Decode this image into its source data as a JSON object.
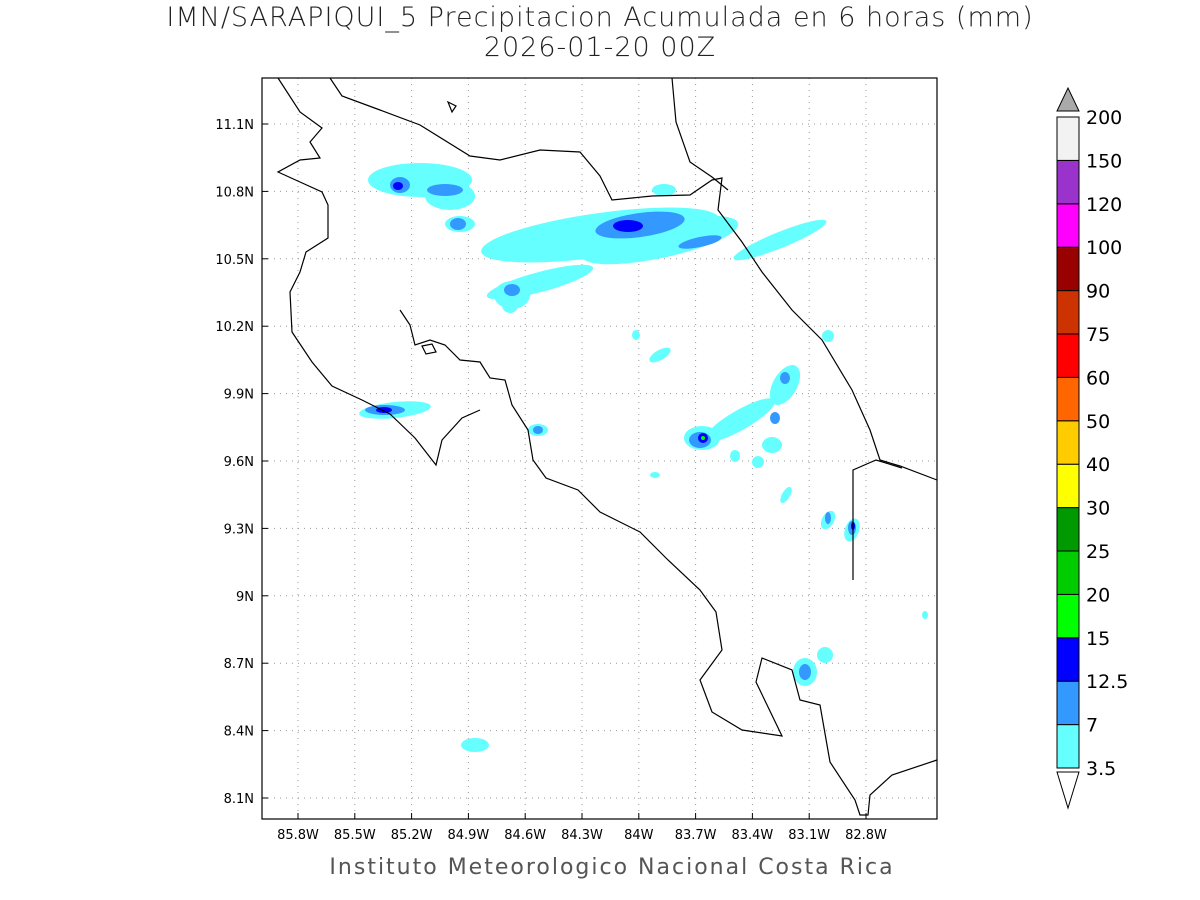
{
  "title": "IMN/SARAPIQUI_5 Precipitacion Acumulada en 6 horas (mm)",
  "subtitle": "2026-01-20 00Z",
  "footer": "Instituto Meteorologico Nacional Costa Rica",
  "map": {
    "lon_range": [
      -86.0,
      -82.43
    ],
    "lat_range": [
      8.0,
      11.3
    ],
    "lon_ticks": [
      {
        "v": -85.8,
        "label": "85.8W"
      },
      {
        "v": -85.5,
        "label": "85.5W"
      },
      {
        "v": -85.2,
        "label": "85.2W"
      },
      {
        "v": -84.9,
        "label": "84.9W"
      },
      {
        "v": -84.6,
        "label": "84.6W"
      },
      {
        "v": -84.3,
        "label": "84.3W"
      },
      {
        "v": -84.0,
        "label": "84W"
      },
      {
        "v": -83.7,
        "label": "83.7W"
      },
      {
        "v": -83.4,
        "label": "83.4W"
      },
      {
        "v": -83.1,
        "label": "83.1W"
      },
      {
        "v": -82.8,
        "label": "82.8W"
      }
    ],
    "lat_ticks": [
      {
        "v": 11.1,
        "label": "11.1N"
      },
      {
        "v": 10.8,
        "label": "10.8N"
      },
      {
        "v": 10.5,
        "label": "10.5N"
      },
      {
        "v": 10.2,
        "label": "10.2N"
      },
      {
        "v": 9.9,
        "label": "9.9N"
      },
      {
        "v": 9.6,
        "label": "9.6N"
      },
      {
        "v": 9.3,
        "label": "9.3N"
      },
      {
        "v": 9.0,
        "label": "9N"
      },
      {
        "v": 8.7,
        "label": "8.7N"
      },
      {
        "v": 8.4,
        "label": "8.4N"
      },
      {
        "v": 8.1,
        "label": "8.1N"
      }
    ]
  },
  "colorbar": {
    "labels": [
      "3.5",
      "7",
      "12.5",
      "15",
      "20",
      "25",
      "30",
      "40",
      "50",
      "60",
      "75",
      "90",
      "100",
      "120",
      "150",
      "200"
    ],
    "colors": [
      "#66ffff",
      "#3399ff",
      "#0000ff",
      "#00ff00",
      "#00cc00",
      "#009900",
      "#ffff00",
      "#ffcc00",
      "#ff6600",
      "#ff0000",
      "#cc3300",
      "#990000",
      "#ff00ff",
      "#9933cc",
      "#f2f2f2"
    ],
    "over_color": "#aaaaaa"
  }
}
